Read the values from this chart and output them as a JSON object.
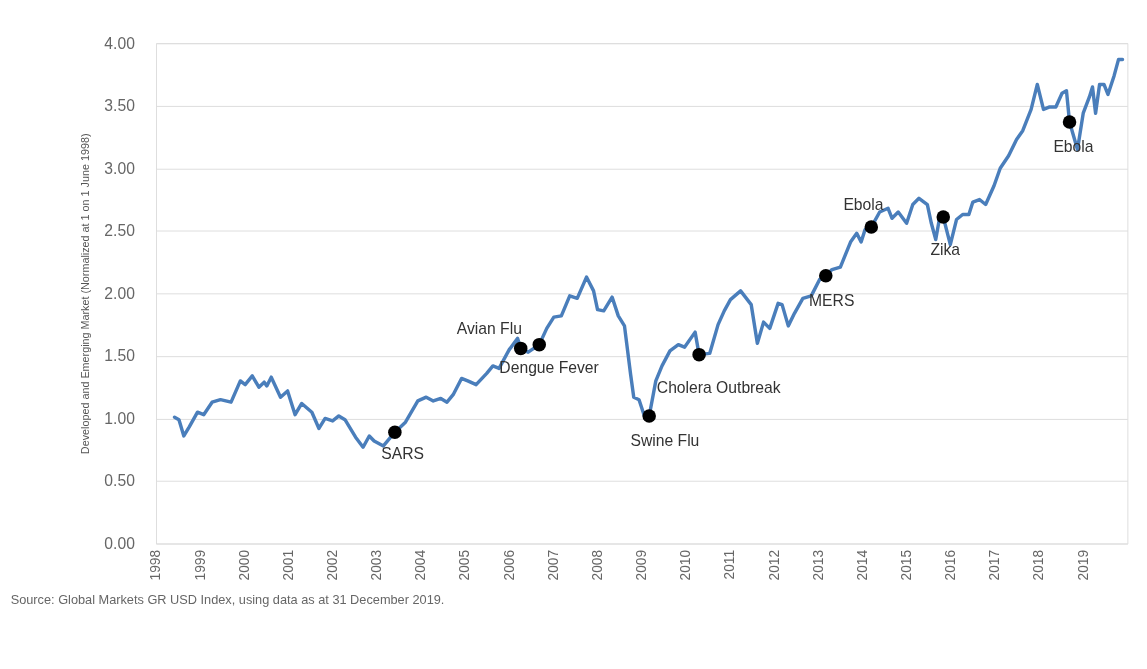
{
  "chart_data": {
    "type": "line",
    "ylabel": "Developed and Emerging Market (Normalized at 1 on 1 June 1998)",
    "xlim": [
      1998,
      2020
    ],
    "xticks": [
      1998,
      1999,
      2000,
      2001,
      2002,
      2003,
      2004,
      2005,
      2006,
      2007,
      2008,
      2009,
      2010,
      2011,
      2012,
      2013,
      2014,
      2015,
      2016,
      2017,
      2018,
      2019
    ],
    "ylim": [
      0,
      4
    ],
    "yticks": [
      {
        "value": 0,
        "label": "0.00"
      },
      {
        "value": 0.5,
        "label": "0.50"
      },
      {
        "value": 1,
        "label": "1.00"
      },
      {
        "value": 1.5,
        "label": "1.50"
      },
      {
        "value": 2,
        "label": "2.00"
      },
      {
        "value": 2.5,
        "label": "2.50"
      },
      {
        "value": 3,
        "label": "3.00"
      },
      {
        "value": 3.5,
        "label": "3.50"
      },
      {
        "value": 4,
        "label": "4.00"
      }
    ],
    "grid": "y",
    "series": [
      {
        "type": "line",
        "color": "#4a7ebb",
        "marker": "none",
        "line_style": "solid",
        "x": [
          1998.42,
          1998.52,
          1998.63,
          1998.75,
          1998.94,
          1999.08,
          1999.27,
          1999.46,
          1999.7,
          1999.91,
          2000.02,
          2000.18,
          2000.33,
          2000.45,
          2000.51,
          2000.61,
          2000.82,
          2000.98,
          2001.15,
          2001.3,
          2001.53,
          2001.69,
          2001.83,
          2002.0,
          2002.14,
          2002.28,
          2002.52,
          2002.69,
          2002.83,
          2002.94,
          2003.15,
          2003.41,
          2003.65,
          2003.93,
          2004.12,
          2004.28,
          2004.45,
          2004.59,
          2004.73,
          2004.92,
          2005.06,
          2005.25,
          2005.49,
          2005.63,
          2005.77,
          2006.0,
          2006.19,
          2006.26,
          2006.43,
          2006.68,
          2006.85,
          2007.01,
          2007.18,
          2007.37,
          2007.54,
          2007.75,
          2007.91,
          2008.0,
          2008.14,
          2008.33,
          2008.47,
          2008.61,
          2008.75,
          2008.82,
          2008.94,
          2009.08,
          2009.17,
          2009.32,
          2009.46,
          2009.64,
          2009.83,
          2009.97,
          2010.21,
          2010.3,
          2010.54,
          2010.73,
          2010.87,
          2011.01,
          2011.24,
          2011.48,
          2011.62,
          2011.76,
          2011.9,
          2012.09,
          2012.18,
          2012.32,
          2012.46,
          2012.65,
          2012.84,
          2013.03,
          2013.17,
          2013.31,
          2013.5,
          2013.73,
          2013.87,
          2013.97,
          2014.06,
          2014.2,
          2014.39,
          2014.58,
          2014.67,
          2014.81,
          2015.0,
          2015.14,
          2015.28,
          2015.47,
          2015.56,
          2015.66,
          2015.75,
          2015.83,
          2015.99,
          2016.13,
          2016.27,
          2016.41,
          2016.5,
          2016.65,
          2016.79,
          2016.98,
          2017.12,
          2017.31,
          2017.49,
          2017.63,
          2017.82,
          2017.96,
          2018.1,
          2018.24,
          2018.38,
          2018.52,
          2018.62,
          2018.69,
          2018.87,
          2019.0,
          2019.14,
          2019.21,
          2019.28,
          2019.37,
          2019.47,
          2019.56,
          2019.7,
          2019.8,
          2019.89
        ],
        "values": [
          1.01,
          0.99,
          0.86,
          0.93,
          1.05,
          1.03,
          1.13,
          1.15,
          1.13,
          1.3,
          1.27,
          1.34,
          1.25,
          1.29,
          1.26,
          1.33,
          1.17,
          1.22,
          1.03,
          1.12,
          1.05,
          0.92,
          1.0,
          0.98,
          1.02,
          0.99,
          0.85,
          0.77,
          0.86,
          0.82,
          0.78,
          0.89,
          0.97,
          1.14,
          1.17,
          1.14,
          1.16,
          1.13,
          1.19,
          1.32,
          1.3,
          1.27,
          1.36,
          1.42,
          1.4,
          1.55,
          1.64,
          1.56,
          1.53,
          1.59,
          1.72,
          1.81,
          1.82,
          1.98,
          1.96,
          2.13,
          2.02,
          1.87,
          1.86,
          1.97,
          1.82,
          1.74,
          1.35,
          1.17,
          1.15,
          1.0,
          1.02,
          1.3,
          1.42,
          1.54,
          1.59,
          1.57,
          1.69,
          1.51,
          1.52,
          1.75,
          1.86,
          1.95,
          2.02,
          1.91,
          1.6,
          1.77,
          1.72,
          1.92,
          1.91,
          1.74,
          1.84,
          1.96,
          1.98,
          2.11,
          2.14,
          2.19,
          2.21,
          2.41,
          2.48,
          2.41,
          2.51,
          2.53,
          2.65,
          2.68,
          2.6,
          2.65,
          2.56,
          2.71,
          2.76,
          2.71,
          2.56,
          2.43,
          2.61,
          2.61,
          2.39,
          2.59,
          2.63,
          2.63,
          2.73,
          2.75,
          2.71,
          2.86,
          3.0,
          3.1,
          3.23,
          3.3,
          3.47,
          3.67,
          3.47,
          3.49,
          3.49,
          3.6,
          3.62,
          3.37,
          3.15,
          3.44,
          3.57,
          3.65,
          3.44,
          3.67,
          3.67,
          3.59,
          3.74,
          3.87,
          3.87
        ]
      },
      {
        "type": "scatter",
        "color": "#000000",
        "marker": "circle",
        "x": [
          2003.41,
          2006.26,
          2006.68,
          2009.17,
          2010.3,
          2013.17,
          2014.2,
          2015.83,
          2018.69
        ],
        "values": [
          0.89,
          1.56,
          1.59,
          1.02,
          1.51,
          2.14,
          2.53,
          2.61,
          3.37
        ]
      }
    ],
    "annotations": [
      {
        "text": "SARS",
        "x": 2003.41,
        "y": 0.89
      },
      {
        "text": "Avian Flu",
        "x": 2006.26,
        "y": 1.56
      },
      {
        "text": "Dengue Fever",
        "x": 2006.68,
        "y": 1.59
      },
      {
        "text": "Swine Flu",
        "x": 2009.17,
        "y": 1.02
      },
      {
        "text": "Cholera Outbreak",
        "x": 2010.3,
        "y": 1.51
      },
      {
        "text": "MERS",
        "x": 2013.17,
        "y": 2.14
      },
      {
        "text": "Ebola",
        "x": 2014.2,
        "y": 2.53
      },
      {
        "text": "Zika",
        "x": 2015.83,
        "y": 2.61
      },
      {
        "text": "Ebola",
        "x": 2018.69,
        "y": 3.37
      },
      "Source: Global Markets GR USD Index, using data as at 31 December 2019."
    ]
  }
}
